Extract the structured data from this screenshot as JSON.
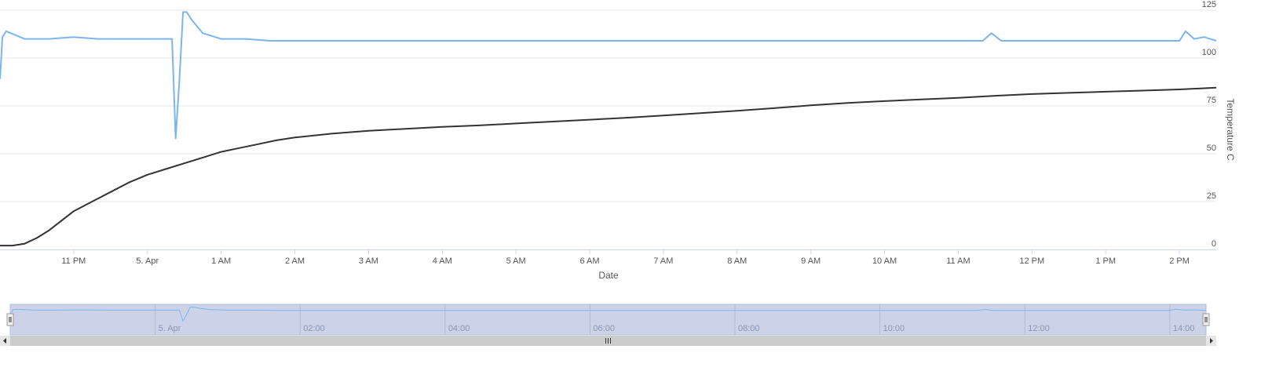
{
  "chart_data": {
    "type": "line",
    "title": "",
    "xlabel": "Date",
    "ylabel": "Temperature C",
    "xlim": [
      "2024-04-04T22:00",
      "2024-04-05T14:30"
    ],
    "ylim": [
      0,
      125
    ],
    "yticks": [
      0,
      25,
      50,
      75,
      100,
      125
    ],
    "xticks": [
      {
        "t": "2024-04-04T23:00",
        "label": "11 PM"
      },
      {
        "t": "2024-04-05T00:00",
        "label": "5. Apr"
      },
      {
        "t": "2024-04-05T01:00",
        "label": "1 AM"
      },
      {
        "t": "2024-04-05T02:00",
        "label": "2 AM"
      },
      {
        "t": "2024-04-05T03:00",
        "label": "3 AM"
      },
      {
        "t": "2024-04-05T04:00",
        "label": "4 AM"
      },
      {
        "t": "2024-04-05T05:00",
        "label": "5 AM"
      },
      {
        "t": "2024-04-05T06:00",
        "label": "6 AM"
      },
      {
        "t": "2024-04-05T07:00",
        "label": "7 AM"
      },
      {
        "t": "2024-04-05T08:00",
        "label": "8 AM"
      },
      {
        "t": "2024-04-05T09:00",
        "label": "9 AM"
      },
      {
        "t": "2024-04-05T10:00",
        "label": "10 AM"
      },
      {
        "t": "2024-04-05T11:00",
        "label": "11 AM"
      },
      {
        "t": "2024-04-05T12:00",
        "label": "12 PM"
      },
      {
        "t": "2024-04-05T13:00",
        "label": "1 PM"
      },
      {
        "t": "2024-04-05T14:00",
        "label": "2 PM"
      }
    ],
    "grid": true,
    "legend": "none",
    "series": [
      {
        "color": "#7cb5ec",
        "x": [
          "2024-04-04T22:00",
          "2024-04-04T22:02",
          "2024-04-04T22:05",
          "2024-04-04T22:20",
          "2024-04-04T22:40",
          "2024-04-04T23:00",
          "2024-04-04T23:20",
          "2024-04-04T23:40",
          "2024-04-05T00:00",
          "2024-04-05T00:10",
          "2024-04-05T00:20",
          "2024-04-05T00:23",
          "2024-04-05T00:26",
          "2024-04-05T00:29",
          "2024-04-05T00:32",
          "2024-04-05T00:36",
          "2024-04-05T00:45",
          "2024-04-05T01:00",
          "2024-04-05T01:20",
          "2024-04-05T01:40",
          "2024-04-05T02:00",
          "2024-04-05T02:20",
          "2024-04-05T02:40",
          "2024-04-05T03:00",
          "2024-04-05T03:20",
          "2024-04-05T03:40",
          "2024-04-05T04:00",
          "2024-04-05T04:20",
          "2024-04-05T04:40",
          "2024-04-05T05:00",
          "2024-04-05T05:20",
          "2024-04-05T05:40",
          "2024-04-05T06:00",
          "2024-04-05T06:20",
          "2024-04-05T06:40",
          "2024-04-05T07:00",
          "2024-04-05T07:20",
          "2024-04-05T07:40",
          "2024-04-05T08:00",
          "2024-04-05T08:20",
          "2024-04-05T08:40",
          "2024-04-05T09:00",
          "2024-04-05T09:20",
          "2024-04-05T09:40",
          "2024-04-05T10:00",
          "2024-04-05T10:20",
          "2024-04-05T10:40",
          "2024-04-05T11:00",
          "2024-04-05T11:20",
          "2024-04-05T11:27",
          "2024-04-05T11:35",
          "2024-04-05T11:45",
          "2024-04-05T12:00",
          "2024-04-05T12:20",
          "2024-04-05T12:40",
          "2024-04-05T13:00",
          "2024-04-05T13:20",
          "2024-04-05T13:40",
          "2024-04-05T14:00",
          "2024-04-05T14:05",
          "2024-04-05T14:12",
          "2024-04-05T14:20",
          "2024-04-05T14:30"
        ],
        "y": [
          89,
          111,
          114,
          110,
          110,
          111,
          110,
          110,
          110,
          110,
          110,
          58,
          88,
          124,
          124,
          120,
          113,
          110,
          110,
          109,
          109,
          109,
          109,
          109,
          109,
          109,
          109,
          109,
          109,
          109,
          109,
          109,
          109,
          109,
          109,
          109,
          109,
          109,
          109,
          109,
          109,
          109,
          109,
          109,
          109,
          109,
          109,
          109,
          109,
          113,
          109,
          109,
          109,
          109,
          109,
          109,
          109,
          109,
          109,
          114,
          110,
          111,
          109
        ]
      },
      {
        "color": "#333333",
        "x": [
          "2024-04-04T22:00",
          "2024-04-04T22:10",
          "2024-04-04T22:20",
          "2024-04-04T22:30",
          "2024-04-04T22:40",
          "2024-04-04T22:50",
          "2024-04-04T23:00",
          "2024-04-04T23:15",
          "2024-04-04T23:30",
          "2024-04-04T23:45",
          "2024-04-05T00:00",
          "2024-04-05T00:15",
          "2024-04-05T00:30",
          "2024-04-05T00:45",
          "2024-04-05T01:00",
          "2024-04-05T01:15",
          "2024-04-05T01:30",
          "2024-04-05T01:45",
          "2024-04-05T02:00",
          "2024-04-05T02:30",
          "2024-04-05T03:00",
          "2024-04-05T03:30",
          "2024-04-05T04:00",
          "2024-04-05T04:30",
          "2024-04-05T05:00",
          "2024-04-05T05:30",
          "2024-04-05T06:00",
          "2024-04-05T06:30",
          "2024-04-05T07:00",
          "2024-04-05T07:30",
          "2024-04-05T08:00",
          "2024-04-05T08:30",
          "2024-04-05T09:00",
          "2024-04-05T09:30",
          "2024-04-05T10:00",
          "2024-04-05T10:30",
          "2024-04-05T11:00",
          "2024-04-05T11:30",
          "2024-04-05T12:00",
          "2024-04-05T12:30",
          "2024-04-05T13:00",
          "2024-04-05T13:30",
          "2024-04-05T14:00",
          "2024-04-05T14:30"
        ],
        "y": [
          2,
          2,
          3,
          6,
          10,
          15,
          20,
          25,
          30,
          35,
          39,
          42,
          45,
          48,
          51,
          53,
          55,
          57,
          58.5,
          60.5,
          62,
          63,
          64,
          64.8,
          65.8,
          66.8,
          67.8,
          68.8,
          70,
          71.2,
          72.4,
          73.8,
          75.3,
          76.5,
          77.5,
          78.4,
          79.2,
          80.3,
          81.2,
          81.8,
          82.4,
          83,
          83.6,
          84.5
        ]
      }
    ],
    "navigator": {
      "color": "#7cb5ec",
      "xticks": [
        {
          "t": "2024-04-05T00:00",
          "label": "5. Apr"
        },
        {
          "t": "2024-04-05T02:00",
          "label": "02:00"
        },
        {
          "t": "2024-04-05T04:00",
          "label": "04:00"
        },
        {
          "t": "2024-04-05T06:00",
          "label": "06:00"
        },
        {
          "t": "2024-04-05T08:00",
          "label": "08:00"
        },
        {
          "t": "2024-04-05T10:00",
          "label": "10:00"
        },
        {
          "t": "2024-04-05T12:00",
          "label": "12:00"
        },
        {
          "t": "2024-04-05T14:00",
          "label": "14:00"
        }
      ]
    }
  }
}
